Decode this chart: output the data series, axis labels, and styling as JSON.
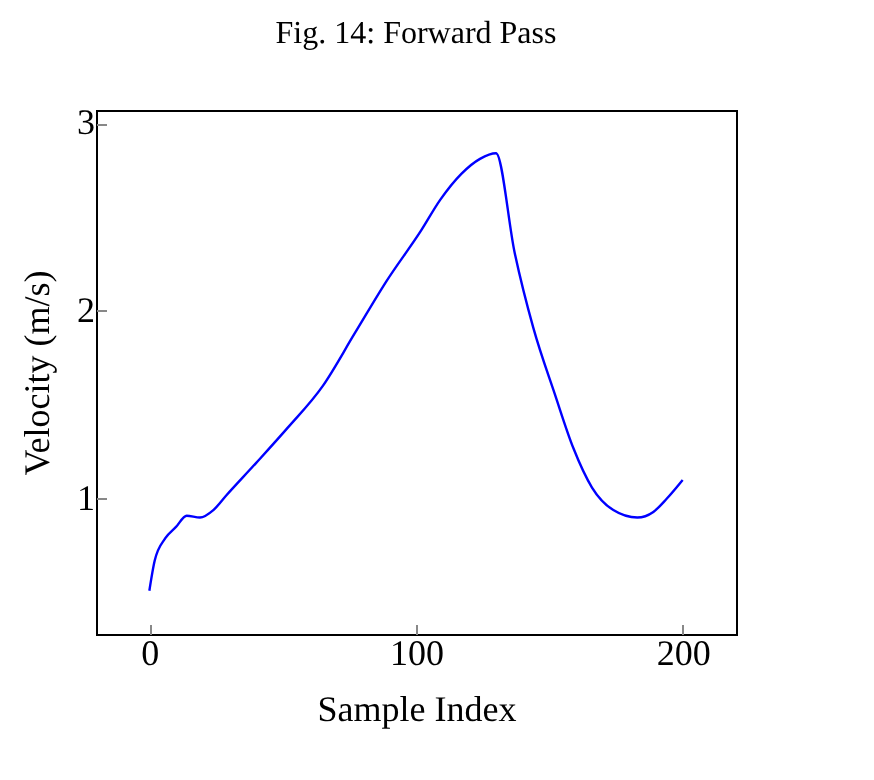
{
  "chart_data": {
    "type": "line",
    "title": "Fig. 14: Forward Pass",
    "xlabel": "Sample Index",
    "ylabel": "Velocity (m/s)",
    "x": [
      0,
      2,
      6,
      10,
      14,
      19,
      24,
      29,
      40,
      52,
      65,
      77,
      89,
      102,
      109,
      117,
      124,
      130,
      137,
      144,
      152,
      159,
      166,
      174,
      183,
      189,
      194,
      200
    ],
    "series": [
      {
        "color": "#0000ff",
        "values": [
          0.51,
          0.67,
          0.79,
          0.85,
          0.91,
          0.9,
          0.94,
          1.02,
          1.19,
          1.38,
          1.6,
          1.88,
          2.16,
          2.43,
          2.59,
          2.73,
          2.81,
          2.84,
          2.31,
          1.91,
          1.56,
          1.27,
          1.06,
          0.94,
          0.9,
          0.93,
          1.0,
          1.1
        ]
      }
    ],
    "xlim": [
      -20,
      220
    ],
    "ylim": [
      0.28,
      3.07
    ],
    "xticks": [
      0,
      100,
      200
    ],
    "yticks": [
      1,
      2,
      3
    ],
    "grid": false,
    "marker": "none",
    "line_style": "solid"
  }
}
